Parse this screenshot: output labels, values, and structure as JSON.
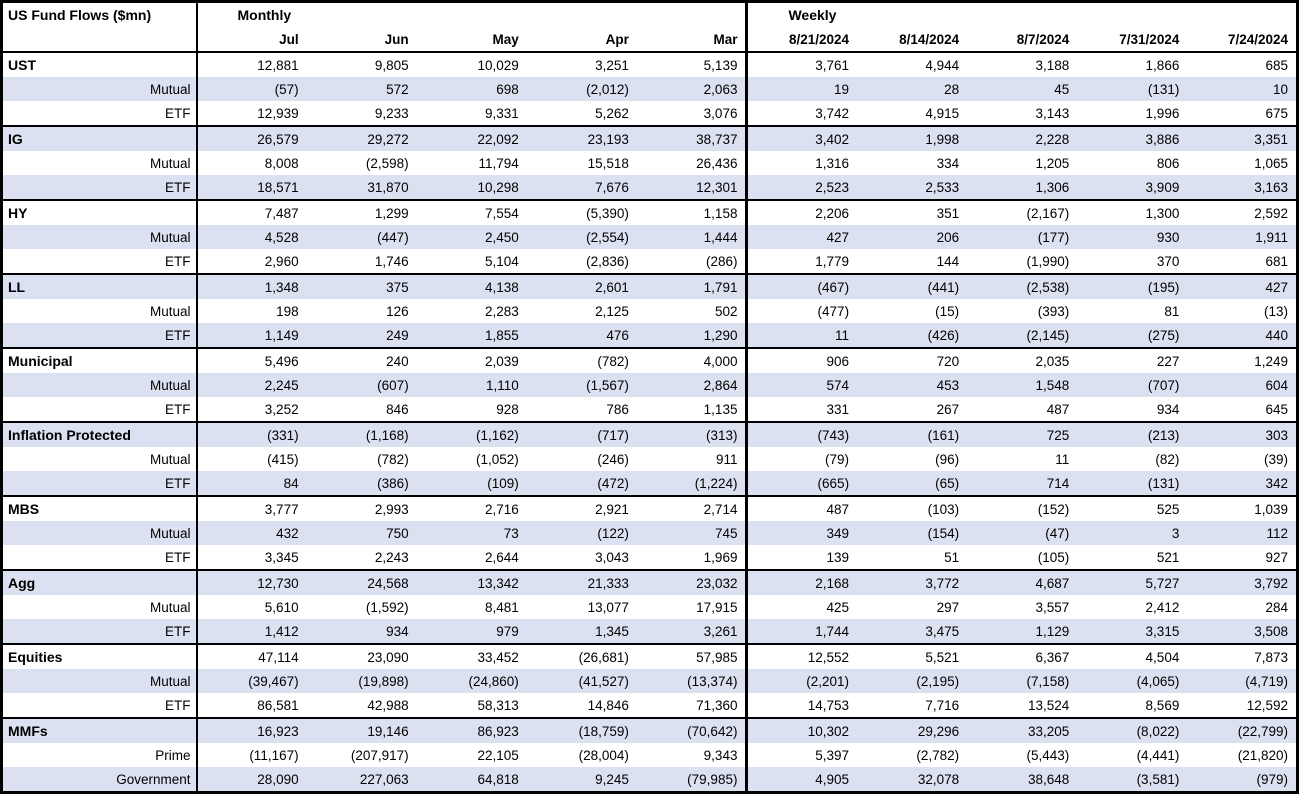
{
  "table": {
    "title": "US Fund Flows ($mn)",
    "colors": {
      "band": "#dbe1f1",
      "border": "#000000",
      "background": "#ffffff"
    },
    "sections": [
      {
        "label": "Monthly",
        "columns": [
          "Jul",
          "Jun",
          "May",
          "Apr",
          "Mar"
        ]
      },
      {
        "label": "Weekly",
        "columns": [
          "8/21/2024",
          "8/14/2024",
          "8/7/2024",
          "7/31/2024",
          "7/24/2024"
        ]
      }
    ],
    "rows": [
      {
        "label": "UST",
        "type": "group",
        "monthly": [
          "12,881",
          "9,805",
          "10,029",
          "3,251",
          "5,139"
        ],
        "weekly": [
          "3,761",
          "4,944",
          "3,188",
          "1,866",
          "685"
        ]
      },
      {
        "label": "Mutual",
        "type": "sub",
        "monthly": [
          "(57)",
          "572",
          "698",
          "(2,012)",
          "2,063"
        ],
        "weekly": [
          "19",
          "28",
          "45",
          "(131)",
          "10"
        ]
      },
      {
        "label": "ETF",
        "type": "sub",
        "monthly": [
          "12,939",
          "9,233",
          "9,331",
          "5,262",
          "3,076"
        ],
        "weekly": [
          "3,742",
          "4,915",
          "3,143",
          "1,996",
          "675"
        ]
      },
      {
        "label": "IG",
        "type": "group",
        "monthly": [
          "26,579",
          "29,272",
          "22,092",
          "23,193",
          "38,737"
        ],
        "weekly": [
          "3,402",
          "1,998",
          "2,228",
          "3,886",
          "3,351"
        ]
      },
      {
        "label": "Mutual",
        "type": "sub",
        "monthly": [
          "8,008",
          "(2,598)",
          "11,794",
          "15,518",
          "26,436"
        ],
        "weekly": [
          "1,316",
          "334",
          "1,205",
          "806",
          "1,065"
        ]
      },
      {
        "label": "ETF",
        "type": "sub",
        "monthly": [
          "18,571",
          "31,870",
          "10,298",
          "7,676",
          "12,301"
        ],
        "weekly": [
          "2,523",
          "2,533",
          "1,306",
          "3,909",
          "3,163"
        ]
      },
      {
        "label": "HY",
        "type": "group",
        "monthly": [
          "7,487",
          "1,299",
          "7,554",
          "(5,390)",
          "1,158"
        ],
        "weekly": [
          "2,206",
          "351",
          "(2,167)",
          "1,300",
          "2,592"
        ]
      },
      {
        "label": "Mutual",
        "type": "sub",
        "monthly": [
          "4,528",
          "(447)",
          "2,450",
          "(2,554)",
          "1,444"
        ],
        "weekly": [
          "427",
          "206",
          "(177)",
          "930",
          "1,911"
        ]
      },
      {
        "label": "ETF",
        "type": "sub",
        "monthly": [
          "2,960",
          "1,746",
          "5,104",
          "(2,836)",
          "(286)"
        ],
        "weekly": [
          "1,779",
          "144",
          "(1,990)",
          "370",
          "681"
        ]
      },
      {
        "label": "LL",
        "type": "group",
        "monthly": [
          "1,348",
          "375",
          "4,138",
          "2,601",
          "1,791"
        ],
        "weekly": [
          "(467)",
          "(441)",
          "(2,538)",
          "(195)",
          "427"
        ]
      },
      {
        "label": "Mutual",
        "type": "sub",
        "monthly": [
          "198",
          "126",
          "2,283",
          "2,125",
          "502"
        ],
        "weekly": [
          "(477)",
          "(15)",
          "(393)",
          "81",
          "(13)"
        ]
      },
      {
        "label": "ETF",
        "type": "sub",
        "monthly": [
          "1,149",
          "249",
          "1,855",
          "476",
          "1,290"
        ],
        "weekly": [
          "11",
          "(426)",
          "(2,145)",
          "(275)",
          "440"
        ]
      },
      {
        "label": "Municipal",
        "type": "group",
        "monthly": [
          "5,496",
          "240",
          "2,039",
          "(782)",
          "4,000"
        ],
        "weekly": [
          "906",
          "720",
          "2,035",
          "227",
          "1,249"
        ]
      },
      {
        "label": "Mutual",
        "type": "sub",
        "monthly": [
          "2,245",
          "(607)",
          "1,110",
          "(1,567)",
          "2,864"
        ],
        "weekly": [
          "574",
          "453",
          "1,548",
          "(707)",
          "604"
        ]
      },
      {
        "label": "ETF",
        "type": "sub",
        "monthly": [
          "3,252",
          "846",
          "928",
          "786",
          "1,135"
        ],
        "weekly": [
          "331",
          "267",
          "487",
          "934",
          "645"
        ]
      },
      {
        "label": "Inflation Protected",
        "type": "group",
        "monthly": [
          "(331)",
          "(1,168)",
          "(1,162)",
          "(717)",
          "(313)"
        ],
        "weekly": [
          "(743)",
          "(161)",
          "725",
          "(213)",
          "303"
        ]
      },
      {
        "label": "Mutual",
        "type": "sub",
        "monthly": [
          "(415)",
          "(782)",
          "(1,052)",
          "(246)",
          "911"
        ],
        "weekly": [
          "(79)",
          "(96)",
          "11",
          "(82)",
          "(39)"
        ]
      },
      {
        "label": "ETF",
        "type": "sub",
        "monthly": [
          "84",
          "(386)",
          "(109)",
          "(472)",
          "(1,224)"
        ],
        "weekly": [
          "(665)",
          "(65)",
          "714",
          "(131)",
          "342"
        ]
      },
      {
        "label": "MBS",
        "type": "group",
        "monthly": [
          "3,777",
          "2,993",
          "2,716",
          "2,921",
          "2,714"
        ],
        "weekly": [
          "487",
          "(103)",
          "(152)",
          "525",
          "1,039"
        ]
      },
      {
        "label": "Mutual",
        "type": "sub",
        "monthly": [
          "432",
          "750",
          "73",
          "(122)",
          "745"
        ],
        "weekly": [
          "349",
          "(154)",
          "(47)",
          "3",
          "112"
        ]
      },
      {
        "label": "ETF",
        "type": "sub",
        "monthly": [
          "3,345",
          "2,243",
          "2,644",
          "3,043",
          "1,969"
        ],
        "weekly": [
          "139",
          "51",
          "(105)",
          "521",
          "927"
        ]
      },
      {
        "label": "Agg",
        "type": "group",
        "monthly": [
          "12,730",
          "24,568",
          "13,342",
          "21,333",
          "23,032"
        ],
        "weekly": [
          "2,168",
          "3,772",
          "4,687",
          "5,727",
          "3,792"
        ]
      },
      {
        "label": "Mutual",
        "type": "sub",
        "monthly": [
          "5,610",
          "(1,592)",
          "8,481",
          "13,077",
          "17,915"
        ],
        "weekly": [
          "425",
          "297",
          "3,557",
          "2,412",
          "284"
        ]
      },
      {
        "label": "ETF",
        "type": "sub",
        "monthly": [
          "1,412",
          "934",
          "979",
          "1,345",
          "3,261"
        ],
        "weekly": [
          "1,744",
          "3,475",
          "1,129",
          "3,315",
          "3,508"
        ]
      },
      {
        "label": "Equities",
        "type": "group",
        "monthly": [
          "47,114",
          "23,090",
          "33,452",
          "(26,681)",
          "57,985"
        ],
        "weekly": [
          "12,552",
          "5,521",
          "6,367",
          "4,504",
          "7,873"
        ]
      },
      {
        "label": "Mutual",
        "type": "sub",
        "monthly": [
          "(39,467)",
          "(19,898)",
          "(24,860)",
          "(41,527)",
          "(13,374)"
        ],
        "weekly": [
          "(2,201)",
          "(2,195)",
          "(7,158)",
          "(4,065)",
          "(4,719)"
        ]
      },
      {
        "label": "ETF",
        "type": "sub",
        "monthly": [
          "86,581",
          "42,988",
          "58,313",
          "14,846",
          "71,360"
        ],
        "weekly": [
          "14,753",
          "7,716",
          "13,524",
          "8,569",
          "12,592"
        ]
      },
      {
        "label": "MMFs",
        "type": "group",
        "monthly": [
          "16,923",
          "19,146",
          "86,923",
          "(18,759)",
          "(70,642)"
        ],
        "weekly": [
          "10,302",
          "29,296",
          "33,205",
          "(8,022)",
          "(22,799)"
        ]
      },
      {
        "label": "Prime",
        "type": "sub",
        "monthly": [
          "(11,167)",
          "(207,917)",
          "22,105",
          "(28,004)",
          "9,343"
        ],
        "weekly": [
          "5,397",
          "(2,782)",
          "(5,443)",
          "(4,441)",
          "(21,820)"
        ]
      },
      {
        "label": "Government",
        "type": "sub",
        "monthly": [
          "28,090",
          "227,063",
          "64,818",
          "9,245",
          "(79,985)"
        ],
        "weekly": [
          "4,905",
          "32,078",
          "38,648",
          "(3,581)",
          "(979)"
        ]
      }
    ]
  }
}
